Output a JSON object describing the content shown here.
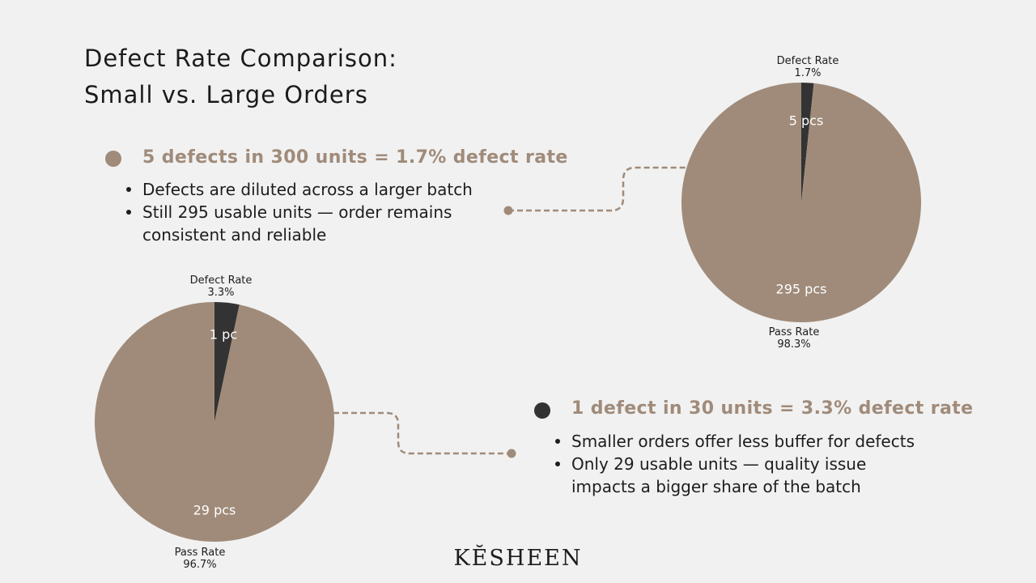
{
  "title": {
    "line1": "Defect Rate Comparison:",
    "line2": "Small vs. Large Orders"
  },
  "large_order": {
    "heading": "5 defects in 300 units = 1.7% defect rate",
    "bullets": [
      "Defects are diluted across a larger batch",
      "Still 295 usable units — order remains consistent and reliable"
    ]
  },
  "small_order": {
    "heading": "1 defect in 30 units = 3.3% defect rate",
    "bullets": [
      "Smaller orders offer less buffer for defects",
      "Only 29 usable units — quality issue impacts a bigger share of the batch"
    ]
  },
  "brand": "KĔSHEEN",
  "colors": {
    "pass": "#a08b7a",
    "defect": "#333333",
    "background": "#f1f1f1"
  },
  "chart_data": [
    {
      "type": "pie",
      "slices": [
        {
          "name": "Defect Rate",
          "percent_label": "1.7%",
          "value": 5,
          "value_label": "5 pcs",
          "color": "#333333"
        },
        {
          "name": "Pass Rate",
          "percent_label": "98.3%",
          "value": 295,
          "value_label": "295 pcs",
          "color": "#a08b7a"
        }
      ]
    },
    {
      "type": "pie",
      "slices": [
        {
          "name": "Defect Rate",
          "percent_label": "3.3%",
          "value": 1,
          "value_label": "1 pc",
          "color": "#333333"
        },
        {
          "name": "Pass Rate",
          "percent_label": "96.7%",
          "value": 29,
          "value_label": "29 pcs",
          "color": "#a08b7a"
        }
      ]
    }
  ]
}
